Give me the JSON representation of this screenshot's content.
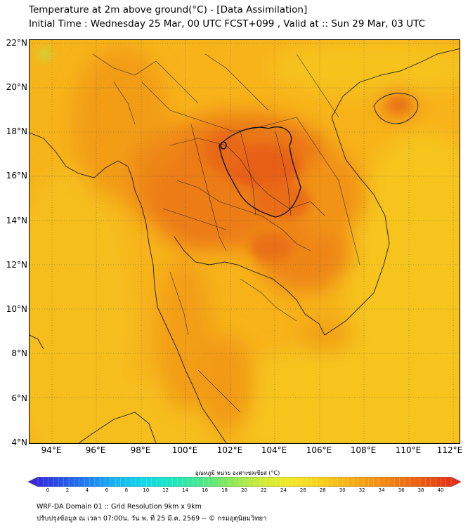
{
  "header": {
    "title_line1": "Temperature at 2m above ground(°C) - [Data Assimilation]",
    "title_line2": "Initial Time : Wednesday 25 Mar, 00 UTC FCST+099 , Valid at :: Sun 29 Mar, 03 UTC"
  },
  "map": {
    "lat_labels": [
      "22°N",
      "20°N",
      "18°N",
      "16°N",
      "14°N",
      "12°N",
      "10°N",
      "8°N",
      "6°N",
      "4°N"
    ],
    "lon_labels": [
      "94°E",
      "96°E",
      "98°E",
      "100°E",
      "102°E",
      "104°E",
      "106°E",
      "108°E",
      "110°E",
      "112°E"
    ]
  },
  "colorbar": {
    "title": "อุณหภูมิ หน่วย องศาเซลเซียส (°C)",
    "ticks": [
      "0",
      "2",
      "4",
      "6",
      "8",
      "10",
      "12",
      "14",
      "16",
      "18",
      "20",
      "22",
      "24",
      "26",
      "28",
      "30",
      "32",
      "34",
      "36",
      "38",
      "40"
    ],
    "colors": [
      "#3a1fd6",
      "#2a4be6",
      "#1f7ef0",
      "#17b4f2",
      "#12d8e8",
      "#1fe6c0",
      "#4ae88c",
      "#8ae85a",
      "#c8ec3a",
      "#f0ea28",
      "#f8d41c",
      "#f7b517",
      "#f49514",
      "#ef7212",
      "#e84e12",
      "#e2281a"
    ]
  },
  "footer": {
    "line1": "WRF-DA Domain 01 :: Grid Resolution 9km x 9km",
    "line2": "ปรับปรุงข้อมูล ณ เวลา 07:00น. วัน พ. ที่ 25 มี.ค. 2569 -- © กรมอุตุนิยมวิทยา"
  }
}
